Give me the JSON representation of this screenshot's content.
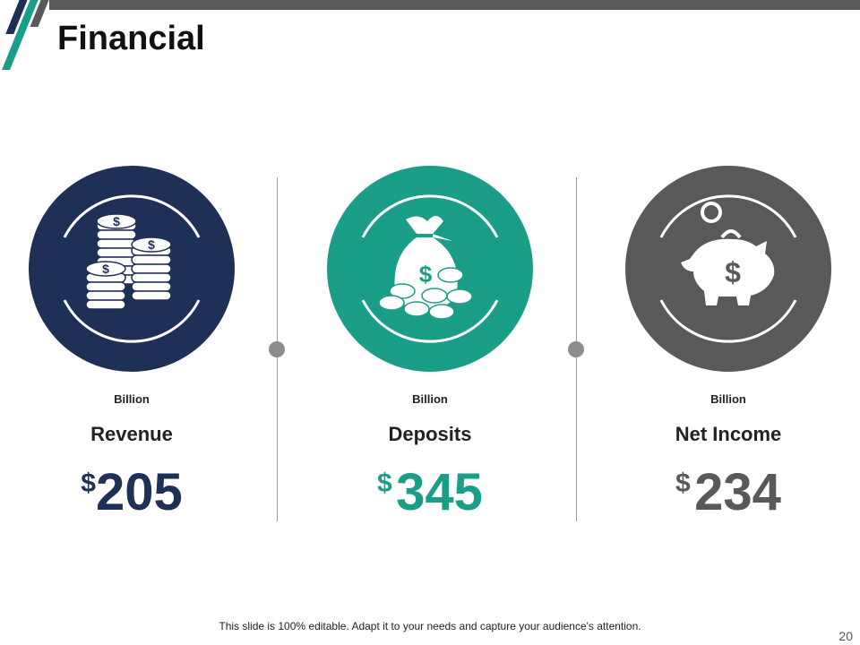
{
  "slide": {
    "title": "Financial",
    "footer_note": "This slide is 100% editable. Adapt it to your needs and capture your audience's attention.",
    "page_number": "20"
  },
  "metrics": [
    {
      "unit": "Billion",
      "label": "Revenue",
      "currency": "$",
      "value": "205",
      "color": "#1f3057",
      "icon": "coin-stacks-icon"
    },
    {
      "unit": "Billion",
      "label": "Deposits",
      "currency": "$",
      "value": "345",
      "color": "#1b9e87",
      "icon": "money-bag-icon"
    },
    {
      "unit": "Billion",
      "label": "Net Income",
      "currency": "$",
      "value": "234",
      "color": "#595959",
      "icon": "piggy-bank-icon"
    }
  ]
}
